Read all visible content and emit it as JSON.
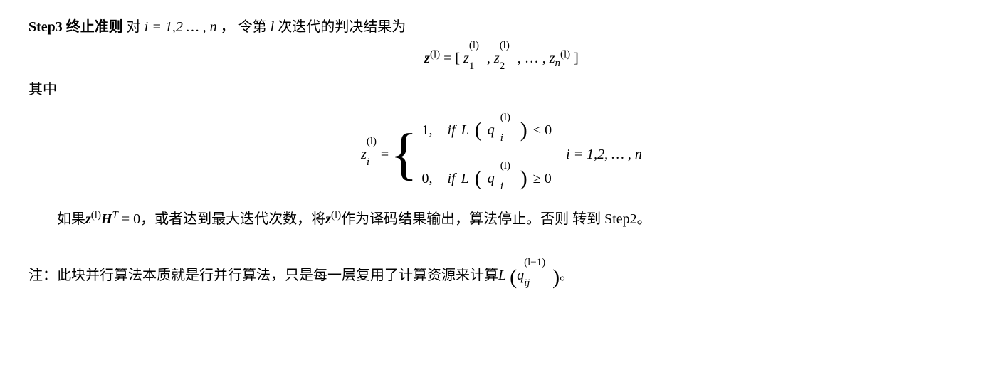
{
  "step3": {
    "label": "Step3 终止准则",
    "opening": "  对 ",
    "iRange": "i = 1,2 … , n",
    "comma": "，",
    "text1": "令第 ",
    "var_l": "l",
    "text2": "次迭代的判决结果为"
  },
  "eq1": {
    "lhs_prefix": "z",
    "sup_l": "(l)",
    "eq": " = ",
    "open": "[",
    "z1_base": "z",
    "z1_sub": "1",
    "z1_sup": "(l)",
    "sep": ", ",
    "z2_base": "z",
    "z2_sub": "2",
    "z2_sup": "(l)",
    "ell": ", … , ",
    "zn_base": "z",
    "zn_sub": "n",
    "zn_sup": "(l)",
    "close": "]"
  },
  "where_label": "其中",
  "cases": {
    "lhs_base": "z",
    "lhs_sub": "i",
    "lhs_sup": "(l)",
    "eq": " = ",
    "case1_val": "1,",
    "case1_if": "if ",
    "case1_L": "L",
    "case1_q": "q",
    "case1_q_sub": "i",
    "case1_q_sup": "(l)",
    "case1_cmp": " < 0",
    "case2_val": "0,",
    "case2_if": "if ",
    "case2_L": "L",
    "case2_q": "q",
    "case2_q_sub": "i",
    "case2_q_sup": "(l)",
    "case2_cmp": " ≥ 0",
    "range": "i = 1,2, … , n"
  },
  "conclusion": {
    "text1": "如果",
    "z": "z",
    "z_sup": "(l)",
    "H": "H",
    "H_sup": "T",
    "eq0": " = 0",
    "text2": "，或者达到最大迭代次数，将",
    "text3": "作为译码结果输出，算法停止。否则 转到 Step2。"
  },
  "note": {
    "label": "注：此块并行算法本质就是行并行算法，只是每一层复用了计算资源来计算",
    "L": "L",
    "q": "q",
    "q_sub": "ij",
    "q_sup": "(l−1)",
    "period": "。"
  }
}
